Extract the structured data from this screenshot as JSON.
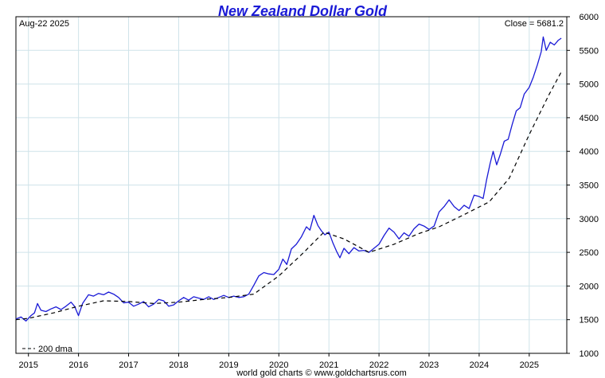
{
  "chart_data": {
    "type": "line",
    "title": "New Zealand Dollar Gold",
    "date_label": "Aug-22  2025",
    "close_label": "Close = 5681.2",
    "legend_label": "200 dma",
    "credit": "world gold charts © www.goldchartsrus.com",
    "xlim": [
      2014.75,
      2025.75
    ],
    "ylim": [
      1000,
      6000
    ],
    "x_ticks": [
      2015,
      2016,
      2017,
      2018,
      2019,
      2020,
      2021,
      2022,
      2023,
      2024,
      2025
    ],
    "x_tick_labels": [
      "2015",
      "2016",
      "2017",
      "2018",
      "2019",
      "2020",
      "2021",
      "2022",
      "2023",
      "2024",
      "2025"
    ],
    "y_ticks": [
      1000,
      1500,
      2000,
      2500,
      3000,
      3500,
      4000,
      4500,
      5000,
      5500,
      6000
    ],
    "y_tick_labels": [
      "1000",
      "1500",
      "2000",
      "2500",
      "3000",
      "3500",
      "4000",
      "4500",
      "5000",
      "5500",
      "6000"
    ],
    "colors": {
      "price": "#1a1ad6",
      "dma": "#000000",
      "grid": "#cfe3ea",
      "title": "#1a1ad6"
    },
    "series": [
      {
        "name": "New Zealand Dollar Gold",
        "style": "solid",
        "points": [
          [
            2014.75,
            1510
          ],
          [
            2014.85,
            1540
          ],
          [
            2014.95,
            1480
          ],
          [
            2015.05,
            1560
          ],
          [
            2015.12,
            1600
          ],
          [
            2015.18,
            1740
          ],
          [
            2015.25,
            1640
          ],
          [
            2015.35,
            1620
          ],
          [
            2015.45,
            1660
          ],
          [
            2015.55,
            1690
          ],
          [
            2015.65,
            1650
          ],
          [
            2015.75,
            1700
          ],
          [
            2015.85,
            1760
          ],
          [
            2015.92,
            1700
          ],
          [
            2016.0,
            1560
          ],
          [
            2016.08,
            1740
          ],
          [
            2016.2,
            1870
          ],
          [
            2016.3,
            1850
          ],
          [
            2016.4,
            1890
          ],
          [
            2016.5,
            1870
          ],
          [
            2016.6,
            1910
          ],
          [
            2016.7,
            1880
          ],
          [
            2016.8,
            1830
          ],
          [
            2016.9,
            1750
          ],
          [
            2017.0,
            1760
          ],
          [
            2017.1,
            1700
          ],
          [
            2017.2,
            1730
          ],
          [
            2017.3,
            1770
          ],
          [
            2017.4,
            1690
          ],
          [
            2017.5,
            1730
          ],
          [
            2017.6,
            1800
          ],
          [
            2017.7,
            1780
          ],
          [
            2017.8,
            1700
          ],
          [
            2017.9,
            1720
          ],
          [
            2018.0,
            1780
          ],
          [
            2018.1,
            1830
          ],
          [
            2018.2,
            1790
          ],
          [
            2018.3,
            1840
          ],
          [
            2018.4,
            1820
          ],
          [
            2018.5,
            1800
          ],
          [
            2018.6,
            1840
          ],
          [
            2018.7,
            1800
          ],
          [
            2018.8,
            1830
          ],
          [
            2018.9,
            1860
          ],
          [
            2019.0,
            1830
          ],
          [
            2019.1,
            1850
          ],
          [
            2019.2,
            1830
          ],
          [
            2019.3,
            1840
          ],
          [
            2019.4,
            1880
          ],
          [
            2019.5,
            2010
          ],
          [
            2019.6,
            2150
          ],
          [
            2019.7,
            2200
          ],
          [
            2019.8,
            2180
          ],
          [
            2019.9,
            2170
          ],
          [
            2020.0,
            2250
          ],
          [
            2020.08,
            2400
          ],
          [
            2020.16,
            2320
          ],
          [
            2020.25,
            2550
          ],
          [
            2020.35,
            2620
          ],
          [
            2020.45,
            2730
          ],
          [
            2020.55,
            2880
          ],
          [
            2020.62,
            2830
          ],
          [
            2020.7,
            3050
          ],
          [
            2020.78,
            2900
          ],
          [
            2020.85,
            2820
          ],
          [
            2020.92,
            2760
          ],
          [
            2021.0,
            2800
          ],
          [
            2021.08,
            2640
          ],
          [
            2021.15,
            2520
          ],
          [
            2021.22,
            2420
          ],
          [
            2021.3,
            2560
          ],
          [
            2021.4,
            2480
          ],
          [
            2021.5,
            2570
          ],
          [
            2021.6,
            2520
          ],
          [
            2021.7,
            2530
          ],
          [
            2021.8,
            2500
          ],
          [
            2021.9,
            2560
          ],
          [
            2022.0,
            2620
          ],
          [
            2022.1,
            2750
          ],
          [
            2022.2,
            2860
          ],
          [
            2022.3,
            2800
          ],
          [
            2022.4,
            2700
          ],
          [
            2022.5,
            2790
          ],
          [
            2022.6,
            2740
          ],
          [
            2022.7,
            2850
          ],
          [
            2022.8,
            2920
          ],
          [
            2022.9,
            2890
          ],
          [
            2023.0,
            2840
          ],
          [
            2023.1,
            2890
          ],
          [
            2023.2,
            3100
          ],
          [
            2023.3,
            3180
          ],
          [
            2023.4,
            3280
          ],
          [
            2023.5,
            3180
          ],
          [
            2023.6,
            3120
          ],
          [
            2023.7,
            3200
          ],
          [
            2023.8,
            3150
          ],
          [
            2023.9,
            3350
          ],
          [
            2024.0,
            3330
          ],
          [
            2024.08,
            3300
          ],
          [
            2024.15,
            3580
          ],
          [
            2024.22,
            3820
          ],
          [
            2024.28,
            4000
          ],
          [
            2024.35,
            3800
          ],
          [
            2024.42,
            3950
          ],
          [
            2024.5,
            4150
          ],
          [
            2024.58,
            4180
          ],
          [
            2024.66,
            4400
          ],
          [
            2024.74,
            4600
          ],
          [
            2024.82,
            4650
          ],
          [
            2024.9,
            4850
          ],
          [
            2025.0,
            4950
          ],
          [
            2025.08,
            5100
          ],
          [
            2025.16,
            5280
          ],
          [
            2025.24,
            5480
          ],
          [
            2025.28,
            5700
          ],
          [
            2025.34,
            5500
          ],
          [
            2025.42,
            5620
          ],
          [
            2025.5,
            5580
          ],
          [
            2025.58,
            5650
          ],
          [
            2025.64,
            5681.2
          ]
        ]
      },
      {
        "name": "200 dma",
        "style": "dashed",
        "points": [
          [
            2014.75,
            1500
          ],
          [
            2015.0,
            1520
          ],
          [
            2015.5,
            1600
          ],
          [
            2016.0,
            1700
          ],
          [
            2016.5,
            1780
          ],
          [
            2017.0,
            1770
          ],
          [
            2017.5,
            1740
          ],
          [
            2018.0,
            1760
          ],
          [
            2018.5,
            1800
          ],
          [
            2019.0,
            1830
          ],
          [
            2019.5,
            1880
          ],
          [
            2020.0,
            2150
          ],
          [
            2020.5,
            2500
          ],
          [
            2020.9,
            2800
          ],
          [
            2021.3,
            2700
          ],
          [
            2021.8,
            2500
          ],
          [
            2022.3,
            2620
          ],
          [
            2022.8,
            2780
          ],
          [
            2023.2,
            2880
          ],
          [
            2023.7,
            3060
          ],
          [
            2024.2,
            3250
          ],
          [
            2024.6,
            3600
          ],
          [
            2025.0,
            4250
          ],
          [
            2025.4,
            4850
          ],
          [
            2025.64,
            5180
          ]
        ]
      }
    ]
  }
}
